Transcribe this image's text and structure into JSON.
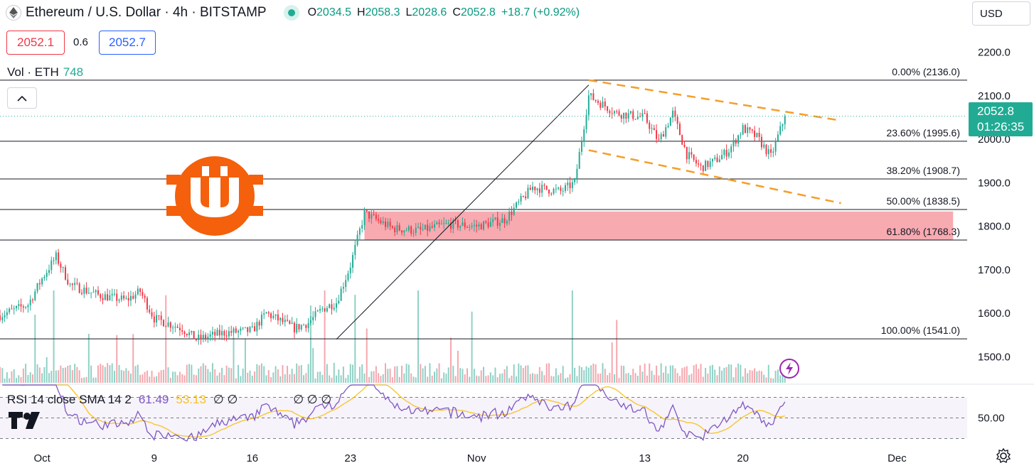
{
  "header": {
    "title": "Ethereum / U.S. Dollar · 4h · BITSTAMP",
    "ohlc": [
      {
        "k": "O",
        "v": "2034.5"
      },
      {
        "k": "H",
        "v": "2058.3"
      },
      {
        "k": "L",
        "v": "2028.6"
      },
      {
        "k": "C",
        "v": "2052.8"
      }
    ],
    "change": "+18.7 (+0.92%)",
    "sell_price": "2052.1",
    "spread": "0.6",
    "buy_price": "2052.7"
  },
  "currency": "USD",
  "volume_label": "Vol · ETH",
  "volume_value": "748",
  "current_price": "2052.8",
  "countdown": "01:26:35",
  "rsi_legend": {
    "name": "RSI 14 close SMA 14 2",
    "rsi": "61.49",
    "sma": "53.13",
    "extra": "∅ ∅",
    "extra2": "∅ ∅ ∅"
  },
  "colors": {
    "up": "#22ab94",
    "down": "#f23645",
    "volume_up": "#8fd0c5",
    "volume_down": "#f5a6ad",
    "zone": "#f7a1a9",
    "channel": "#f59e2b",
    "rsi": "#7e57c2",
    "rsi_sma": "#f7c325",
    "logo": "#f4600c"
  },
  "chart_data": {
    "type": "candlestick",
    "yticks": [
      1500,
      1600,
      1700,
      1800,
      1900,
      2000,
      2100,
      2200
    ],
    "ytick_labels": [
      "1500.0",
      "1600.0",
      "1700.0",
      "1800.0",
      "1900.0",
      "2000.0",
      "2100.0",
      "2200.0"
    ],
    "ylim": [
      1440,
      2255
    ],
    "xlim_days": [
      "2023-09-28",
      "2023-12-06"
    ],
    "xticks": [
      {
        "label": "Oct",
        "date": "2023-10-01"
      },
      {
        "label": "9",
        "date": "2023-10-09"
      },
      {
        "label": "16",
        "date": "2023-10-16"
      },
      {
        "label": "23",
        "date": "2023-10-23"
      },
      {
        "label": "Nov",
        "date": "2023-11-01"
      },
      {
        "label": "13",
        "date": "2023-11-13"
      },
      {
        "label": "20",
        "date": "2023-11-20"
      },
      {
        "label": "Dec",
        "date": "2023-12-01"
      }
    ],
    "fib_levels": [
      {
        "label": "0.00% (2136.0)",
        "price": 2136.0
      },
      {
        "label": "23.60% (1995.6)",
        "price": 1995.6
      },
      {
        "label": "38.20% (1908.7)",
        "price": 1908.7
      },
      {
        "label": "50.00% (1838.5)",
        "price": 1838.5
      },
      {
        "label": "61.80% (1768.3)",
        "price": 1768.3
      },
      {
        "label": "100.00% (1541.0)",
        "price": 1541.0
      }
    ],
    "fib_trend_line": [
      {
        "date": "2023-10-22",
        "price": 1540
      },
      {
        "date": "2023-11-09",
        "price": 2125
      }
    ],
    "demand_zone": {
      "from": "2023-10-24",
      "to": "2023-12-05",
      "low": 1768,
      "high": 1834
    },
    "channel_upper": [
      {
        "date": "2023-11-09",
        "price": 2136
      },
      {
        "date": "2023-11-27",
        "price": 2043
      }
    ],
    "channel_lower": [
      {
        "date": "2023-11-09",
        "price": 1975
      },
      {
        "date": "2023-11-27",
        "price": 1853
      }
    ],
    "price_path": [
      {
        "date": "2023-09-28",
        "price": 1595
      },
      {
        "date": "2023-09-30",
        "price": 1620
      },
      {
        "date": "2023-10-01",
        "price": 1680
      },
      {
        "date": "2023-10-02",
        "price": 1730
      },
      {
        "date": "2023-10-03",
        "price": 1665
      },
      {
        "date": "2023-10-05",
        "price": 1642
      },
      {
        "date": "2023-10-07",
        "price": 1630
      },
      {
        "date": "2023-10-08",
        "price": 1650
      },
      {
        "date": "2023-10-09",
        "price": 1588
      },
      {
        "date": "2023-10-11",
        "price": 1565
      },
      {
        "date": "2023-10-12",
        "price": 1540
      },
      {
        "date": "2023-10-14",
        "price": 1555
      },
      {
        "date": "2023-10-16",
        "price": 1560
      },
      {
        "date": "2023-10-17",
        "price": 1600
      },
      {
        "date": "2023-10-19",
        "price": 1565
      },
      {
        "date": "2023-10-20",
        "price": 1578
      },
      {
        "date": "2023-10-21",
        "price": 1610
      },
      {
        "date": "2023-10-22",
        "price": 1625
      },
      {
        "date": "2023-10-23",
        "price": 1710
      },
      {
        "date": "2023-10-24",
        "price": 1830
      },
      {
        "date": "2023-10-26",
        "price": 1795
      },
      {
        "date": "2023-10-28",
        "price": 1790
      },
      {
        "date": "2023-10-30",
        "price": 1805
      },
      {
        "date": "2023-11-01",
        "price": 1800
      },
      {
        "date": "2023-11-03",
        "price": 1815
      },
      {
        "date": "2023-11-05",
        "price": 1890
      },
      {
        "date": "2023-11-07",
        "price": 1880
      },
      {
        "date": "2023-11-08",
        "price": 1900
      },
      {
        "date": "2023-11-09",
        "price": 2100
      },
      {
        "date": "2023-11-10",
        "price": 2080
      },
      {
        "date": "2023-11-11",
        "price": 2060
      },
      {
        "date": "2023-11-13",
        "price": 2050
      },
      {
        "date": "2023-11-14",
        "price": 1995
      },
      {
        "date": "2023-11-15",
        "price": 2060
      },
      {
        "date": "2023-11-16",
        "price": 1965
      },
      {
        "date": "2023-11-17",
        "price": 1935
      },
      {
        "date": "2023-11-18",
        "price": 1950
      },
      {
        "date": "2023-11-19",
        "price": 1975
      },
      {
        "date": "2023-11-20",
        "price": 2025
      },
      {
        "date": "2023-11-21",
        "price": 2005
      },
      {
        "date": "2023-11-22",
        "price": 1960
      },
      {
        "date": "2023-11-23",
        "price": 2052.8
      }
    ],
    "rsi_reference": 50.0,
    "rsi_ytick_label": "50.00"
  }
}
